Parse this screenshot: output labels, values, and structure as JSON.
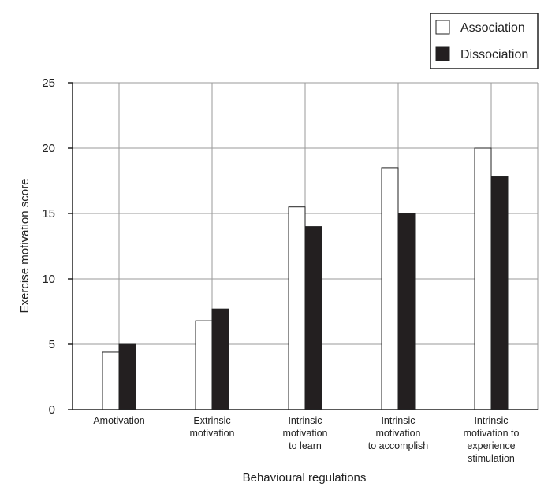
{
  "chart_data": {
    "type": "bar",
    "title": "",
    "xlabel": "Behavioural regulations",
    "ylabel": "Exercise motivation score",
    "ylim": [
      0,
      25
    ],
    "yticks": [
      0,
      5,
      10,
      15,
      20,
      25
    ],
    "grid": true,
    "legend_position": "top-right",
    "categories": [
      [
        "Amotivation"
      ],
      [
        "Extrinsic",
        "motivation"
      ],
      [
        "Intrinsic",
        "motivation",
        "to learn"
      ],
      [
        "Intrinsic",
        "motivation",
        "to accomplish"
      ],
      [
        "Intrinsic",
        "motivation to",
        "experience",
        "stimulation"
      ]
    ],
    "series": [
      {
        "name": "Association",
        "color": "#ffffff",
        "values": [
          4.4,
          6.8,
          15.5,
          18.5,
          20.0
        ]
      },
      {
        "name": "Dissociation",
        "color": "#231f20",
        "values": [
          5.0,
          7.7,
          14.0,
          15.0,
          17.8
        ]
      }
    ]
  }
}
